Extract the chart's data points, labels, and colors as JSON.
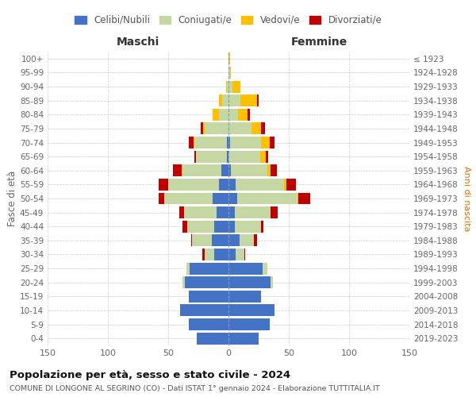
{
  "age_groups": [
    "0-4",
    "5-9",
    "10-14",
    "15-19",
    "20-24",
    "25-29",
    "30-34",
    "35-39",
    "40-44",
    "45-49",
    "50-54",
    "55-59",
    "60-64",
    "65-69",
    "70-74",
    "75-79",
    "80-84",
    "85-89",
    "90-94",
    "95-99",
    "100+"
  ],
  "birth_years": [
    "2019-2023",
    "2014-2018",
    "2009-2013",
    "2004-2008",
    "1999-2003",
    "1994-1998",
    "1989-1993",
    "1984-1988",
    "1979-1983",
    "1974-1978",
    "1969-1973",
    "1964-1968",
    "1959-1963",
    "1954-1958",
    "1949-1953",
    "1944-1948",
    "1939-1943",
    "1934-1938",
    "1929-1933",
    "1924-1928",
    "≤ 1923"
  ],
  "male": {
    "celibi": [
      26,
      33,
      40,
      33,
      36,
      32,
      12,
      14,
      12,
      10,
      13,
      8,
      6,
      1,
      1,
      0,
      0,
      0,
      0,
      0,
      0
    ],
    "coniugati": [
      0,
      0,
      0,
      0,
      2,
      3,
      8,
      16,
      22,
      27,
      40,
      42,
      32,
      26,
      27,
      20,
      8,
      5,
      1,
      0,
      0
    ],
    "vedovi": [
      0,
      0,
      0,
      0,
      0,
      0,
      0,
      0,
      0,
      0,
      0,
      0,
      1,
      0,
      1,
      1,
      5,
      3,
      1,
      0,
      0
    ],
    "divorziati": [
      0,
      0,
      0,
      0,
      0,
      0,
      2,
      1,
      4,
      4,
      5,
      8,
      7,
      1,
      4,
      2,
      0,
      0,
      0,
      0,
      0
    ]
  },
  "female": {
    "nubili": [
      25,
      34,
      38,
      27,
      35,
      28,
      6,
      9,
      5,
      5,
      7,
      6,
      2,
      0,
      1,
      0,
      0,
      0,
      0,
      0,
      0
    ],
    "coniugate": [
      0,
      0,
      0,
      0,
      2,
      4,
      7,
      12,
      22,
      30,
      50,
      40,
      30,
      26,
      26,
      19,
      8,
      10,
      3,
      1,
      0
    ],
    "vedove": [
      0,
      0,
      0,
      0,
      0,
      0,
      0,
      0,
      0,
      0,
      1,
      2,
      3,
      5,
      7,
      8,
      8,
      14,
      7,
      1,
      1
    ],
    "divorziate": [
      0,
      0,
      0,
      0,
      0,
      0,
      1,
      3,
      2,
      6,
      10,
      8,
      5,
      2,
      4,
      3,
      2,
      1,
      0,
      0,
      0
    ]
  },
  "colors": {
    "celibi": "#4472c4",
    "coniugati": "#c5d8a4",
    "vedovi": "#ffc000",
    "divorziati": "#c00000"
  },
  "xlim": 150,
  "title": "Popolazione per età, sesso e stato civile - 2024",
  "subtitle": "COMUNE DI LONGONE AL SEGRINO (CO) - Dati ISTAT 1° gennaio 2024 - Elaborazione TUTTITALIA.IT",
  "ylabel_left": "Fasce di età",
  "ylabel_right": "Anni di nascita",
  "xlabel_maschi": "Maschi",
  "xlabel_femmine": "Femmine",
  "legend_labels": [
    "Celibi/Nubili",
    "Coniugati/e",
    "Vedovi/e",
    "Divorziati/e"
  ],
  "background_color": "#ffffff",
  "grid_color": "#cccccc"
}
